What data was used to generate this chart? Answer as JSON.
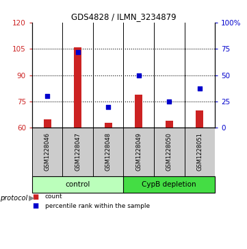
{
  "title": "GDS4828 / ILMN_3234879",
  "samples": [
    "GSM1228046",
    "GSM1228047",
    "GSM1228048",
    "GSM1228049",
    "GSM1228050",
    "GSM1228051"
  ],
  "counts": [
    65,
    106,
    63,
    79,
    64,
    70
  ],
  "percentiles": [
    30,
    72,
    20,
    50,
    25,
    37
  ],
  "ylim_left": [
    60,
    120
  ],
  "ylim_right": [
    0,
    100
  ],
  "yticks_left": [
    60,
    75,
    90,
    105,
    120
  ],
  "yticks_right": [
    0,
    25,
    50,
    75,
    100
  ],
  "ytick_labels_right": [
    "0",
    "25",
    "50",
    "75",
    "100%"
  ],
  "bar_color": "#cc2222",
  "dot_color": "#0000cc",
  "group_control_color": "#bbffbb",
  "group_cypb_color": "#44dd44",
  "group_labels": [
    "control",
    "CypB depletion"
  ],
  "protocol_label": "protocol",
  "legend_items": [
    {
      "color": "#cc2222",
      "label": "count"
    },
    {
      "color": "#0000cc",
      "label": "percentile rank within the sample"
    }
  ],
  "sample_box_color": "#cccccc",
  "bar_width": 0.25,
  "dot_size": 20
}
